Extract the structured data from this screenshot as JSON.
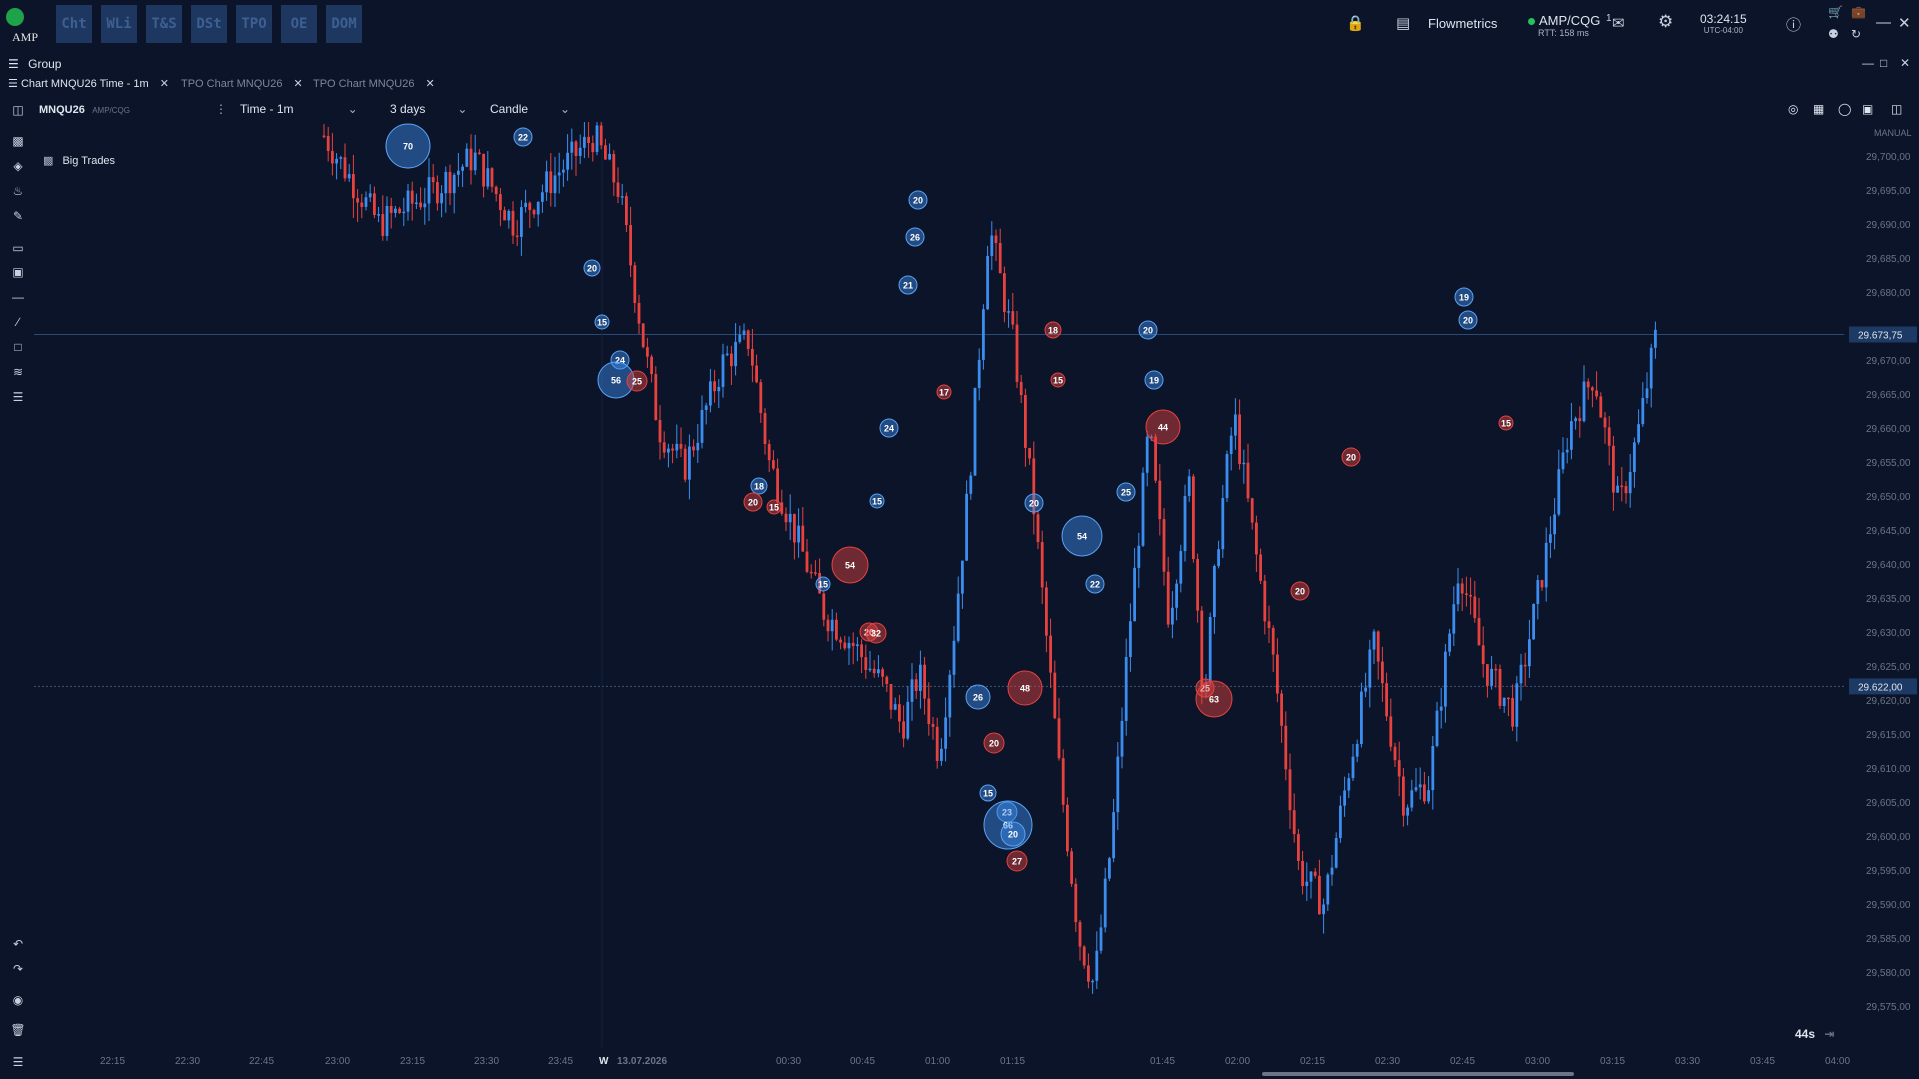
{
  "app": {
    "logo_text": "AMP"
  },
  "modules": [
    "Cht",
    "WLi",
    "T&S",
    "DSt",
    "TPO",
    "OE",
    "DOM"
  ],
  "topbar": {
    "workspace": "Flowmetrics",
    "connection": "AMP/CQG",
    "rtt": "RTT: 158 ms",
    "chat_badge": "1",
    "time": "03:24:15",
    "timezone": "UTC-04:00"
  },
  "group_label": "Group",
  "tabs": [
    {
      "label": "Chart MNQU26 Time - 1m",
      "active": true
    },
    {
      "label": "TPO Chart MNQU26",
      "active": false
    },
    {
      "label": "TPO Chart MNQU26",
      "active": false
    }
  ],
  "toolbar": {
    "symbol": "MNQU26",
    "feed": "AMP/CQG",
    "interval": "Time - 1m",
    "range": "3 days",
    "style": "Candle"
  },
  "indicator": "Big Trades",
  "price_axis": {
    "mode": "MANUAL",
    "labels": [
      "29,700,00",
      "29,695,00",
      "29,690,00",
      "29,685,00",
      "29,680,00",
      "29,670,00",
      "29,665,00",
      "29,660,00",
      "29,655,00",
      "29,650,00",
      "29,645,00",
      "29,640,00",
      "29,635,00",
      "29,630,00",
      "29,625,00",
      "29,620,00",
      "29,615,00",
      "29,610,00",
      "29,605,00",
      "29,600,00",
      "29,595,00",
      "29,590,00",
      "29,585,00",
      "29,580,00",
      "29,575,00"
    ],
    "current_price": "29.673,75",
    "marker_price": "29.622,00"
  },
  "time_axis": {
    "labels": [
      "22:15",
      "22:30",
      "22:45",
      "23:00",
      "23:15",
      "23:30",
      "23:45",
      "00:30",
      "00:45",
      "01:00",
      "01:15",
      "01:45",
      "02:00",
      "02:15",
      "02:30",
      "02:45",
      "03:00",
      "03:15",
      "03:30",
      "03:45",
      "04:00"
    ],
    "day_marker": "W",
    "date": "13.07.2026"
  },
  "countdown": "44s",
  "big_trades": [
    {
      "v": "16",
      "side": "sell"
    },
    {
      "v": "70",
      "side": "buy"
    },
    {
      "v": "22",
      "side": "buy"
    },
    {
      "v": "20",
      "side": "buy"
    },
    {
      "v": "15",
      "side": "buy"
    },
    {
      "v": "24",
      "side": "buy"
    },
    {
      "v": "56",
      "side": "buy"
    },
    {
      "v": "25",
      "side": "sell"
    },
    {
      "v": "18",
      "side": "buy"
    },
    {
      "v": "20",
      "side": "sell"
    },
    {
      "v": "15",
      "side": "sell"
    },
    {
      "v": "15",
      "side": "buy"
    },
    {
      "v": "54",
      "side": "sell"
    },
    {
      "v": "20",
      "side": "sell"
    },
    {
      "v": "32",
      "side": "sell"
    },
    {
      "v": "15",
      "side": "buy"
    },
    {
      "v": "24",
      "side": "buy"
    },
    {
      "v": "20",
      "side": "buy"
    },
    {
      "v": "26",
      "side": "buy"
    },
    {
      "v": "21",
      "side": "buy"
    },
    {
      "v": "17",
      "side": "sell"
    },
    {
      "v": "26",
      "side": "buy"
    },
    {
      "v": "20",
      "side": "sell"
    },
    {
      "v": "15",
      "side": "buy"
    },
    {
      "v": "23",
      "side": "buy"
    },
    {
      "v": "66",
      "side": "buy"
    },
    {
      "v": "20",
      "side": "buy"
    },
    {
      "v": "27",
      "side": "sell"
    },
    {
      "v": "48",
      "side": "sell"
    },
    {
      "v": "20",
      "side": "buy"
    },
    {
      "v": "18",
      "side": "sell"
    },
    {
      "v": "15",
      "side": "sell"
    },
    {
      "v": "54",
      "side": "buy"
    },
    {
      "v": "22",
      "side": "buy"
    },
    {
      "v": "25",
      "side": "buy"
    },
    {
      "v": "20",
      "side": "buy"
    },
    {
      "v": "19",
      "side": "buy"
    },
    {
      "v": "44",
      "side": "sell"
    },
    {
      "v": "25",
      "side": "sell"
    },
    {
      "v": "63",
      "side": "sell"
    },
    {
      "v": "20",
      "side": "sell"
    },
    {
      "v": "20",
      "side": "sell"
    },
    {
      "v": "19",
      "side": "buy"
    },
    {
      "v": "20",
      "side": "buy"
    },
    {
      "v": "15",
      "side": "sell"
    }
  ],
  "colors": {
    "bg": "#0b1428",
    "up": "#3b8ef0",
    "down": "#e8423f",
    "grid_line": "#1f3150"
  }
}
